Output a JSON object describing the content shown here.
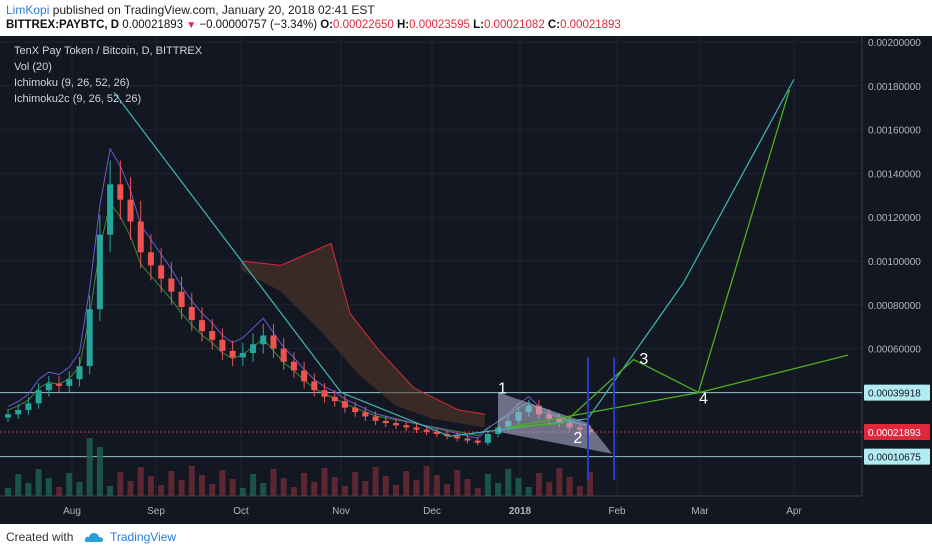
{
  "header": {
    "author": "LimKopi",
    "published_text": "published on TradingView.com, January 20, 2018 02:41 EST",
    "symbol": "BITTREX:PAYBTC, D",
    "price": "0.00021893",
    "change": "−0.00000757 (−3.34%)",
    "o_label": "O:",
    "o_value": "0.00022650",
    "h_label": "H:",
    "h_value": "0.00023595",
    "l_label": "L:",
    "l_value": "0.00021082",
    "c_label": "C:",
    "c_value": "0.00021893"
  },
  "footer": {
    "created_with": "Created with",
    "brand": "TradingView"
  },
  "chart_data": {
    "type": "candlestick",
    "title": "TenX Pay Token / Bitcoin, D, BITTREX",
    "indicators": [
      "Vol (20)",
      "Ichimoku (9, 26, 52, 26)",
      "Ichimoku2c (9, 26, 52, 26)"
    ],
    "x_ticks": [
      "Aug",
      "Sep",
      "Oct",
      "Nov",
      "Dec",
      "2018",
      "Feb",
      "Mar",
      "Apr"
    ],
    "y_ticks": [
      "0.00200000",
      "0.00180000",
      "0.00160000",
      "0.00140000",
      "0.00120000",
      "0.00100000",
      "0.00080000",
      "0.00060000",
      "0.00040000"
    ],
    "ylim": [
      0.0,
      0.002
    ],
    "price_tags": [
      {
        "value": "0.00039918",
        "color": "#b2ebf2"
      },
      {
        "value": "0.00021893",
        "color": "#e0283c"
      },
      {
        "value": "0.00010675",
        "color": "#b2ebf2"
      }
    ],
    "close_series": {
      "start_month_index": 0,
      "values": [
        0.0003,
        0.00032,
        0.00035,
        0.00041,
        0.00044,
        0.00043,
        0.00046,
        0.00052,
        0.00078,
        0.00112,
        0.00135,
        0.00128,
        0.00118,
        0.00104,
        0.00098,
        0.00092,
        0.00086,
        0.00079,
        0.00073,
        0.00068,
        0.00064,
        0.00059,
        0.00056,
        0.00058,
        0.00062,
        0.00066,
        0.0006,
        0.00054,
        0.0005,
        0.00045,
        0.00041,
        0.00038,
        0.00036,
        0.00033,
        0.00031,
        0.00029,
        0.00027,
        0.00026,
        0.00025,
        0.00024,
        0.00023,
        0.00022,
        0.00021,
        0.0002,
        0.00019,
        0.00018,
        0.00017,
        0.00021,
        0.00024,
        0.00027,
        0.00031,
        0.00034,
        0.0003,
        0.00028,
        0.00026,
        0.00024,
        0.00023,
        0.00022
      ]
    },
    "annotations": [
      {
        "label": "1",
        "month_pos": 4.75,
        "value": 0.000395
      },
      {
        "label": "2",
        "month_pos": 5.55,
        "value": 0.00017
      },
      {
        "label": "3",
        "month_pos": 6.27,
        "value": 0.00053
      },
      {
        "label": "4",
        "month_pos": 6.99,
        "value": 0.00035
      }
    ],
    "projection": {
      "green_path": [
        [
          4.86,
          0.00024
        ],
        [
          5.45,
          0.00026
        ],
        [
          6.2,
          0.00055
        ],
        [
          6.98,
          0.0004
        ],
        [
          7.95,
          0.00178
        ]
      ],
      "green_ray": [
        [
          4.86,
          0.00024
        ],
        [
          7.0,
          0.0004
        ],
        [
          8.6,
          0.00057
        ]
      ],
      "teal_arc": [
        [
          0.5,
          0.00177
        ],
        [
          3.0,
          0.0004
        ],
        [
          4.2,
          0.0002
        ],
        [
          5.7,
          0.00028
        ],
        [
          6.8,
          0.0009
        ],
        [
          8.0,
          0.00183
        ]
      ]
    }
  }
}
